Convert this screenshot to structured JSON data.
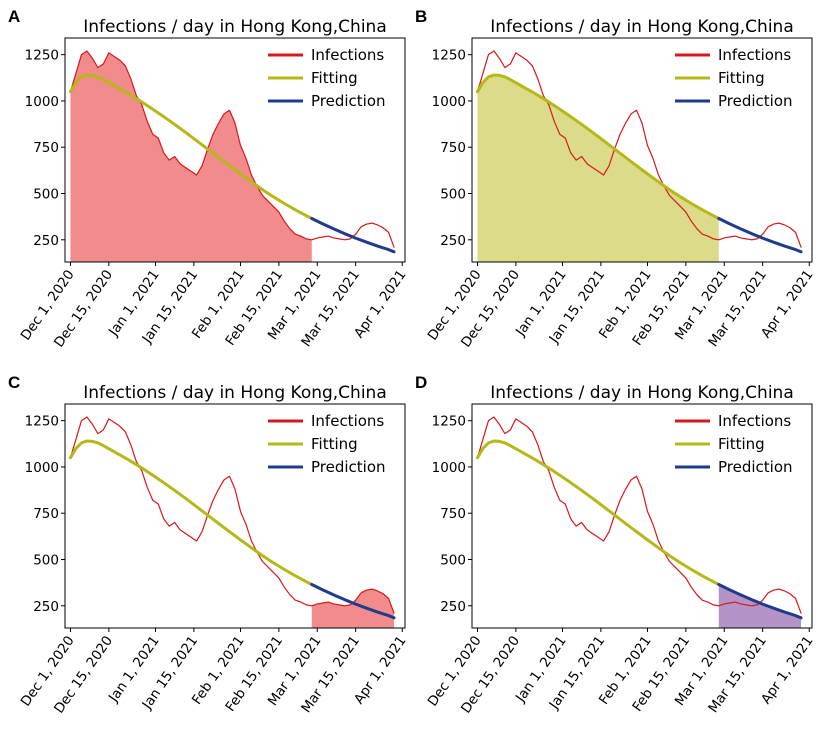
{
  "figure": {
    "title": "Infections / day in Hong Kong,China",
    "panel_labels": [
      "A",
      "B",
      "C",
      "D"
    ],
    "legend": [
      {
        "key": "infections",
        "label": "Infections",
        "color": "#d7191c"
      },
      {
        "key": "fitting",
        "label": "Fitting",
        "color": "#b5b816"
      },
      {
        "key": "prediction",
        "label": "Prediction",
        "color": "#1f3b8c"
      }
    ],
    "panels": [
      {
        "label": "A",
        "shade": "infections",
        "shade_range": [
          0,
          88
        ],
        "shade_color": "#f28b8b"
      },
      {
        "label": "B",
        "shade": "fitting",
        "shade_range": [
          0,
          88
        ],
        "shade_color": "#dbdb8a"
      },
      {
        "label": "C",
        "shade": "infections",
        "shade_range": [
          88,
          118
        ],
        "shade_color": "#f28b8b"
      },
      {
        "label": "D",
        "shade": "prediction",
        "shade_range": [
          88,
          118
        ],
        "shade_color": "#b393c8"
      }
    ]
  },
  "chart_data": {
    "type": "line",
    "title": "Infections / day in Hong Kong,China",
    "x_unit": "days since Dec 1, 2020",
    "xlim": [
      -2,
      122
    ],
    "ylim": [
      130,
      1340
    ],
    "y_ticks": [
      250,
      500,
      750,
      1000,
      1250
    ],
    "y_tick_labels": [
      "250",
      "500",
      "750",
      "1000",
      "1250"
    ],
    "x_ticks": [
      0,
      14,
      31,
      45,
      62,
      76,
      90,
      104,
      121
    ],
    "x_tick_labels": [
      "Dec 1, 2020",
      "Dec 15, 2020",
      "Jan 1, 2021",
      "Jan 15, 2021",
      "Feb 1, 2021",
      "Feb 15, 2021",
      "Mar 1, 2021",
      "Mar 15, 2021",
      "Apr 1, 2021"
    ],
    "fit_end_day": 88,
    "series": [
      {
        "name": "Infections",
        "x": [
          0,
          2,
          4,
          6,
          8,
          10,
          12,
          14,
          16,
          18,
          20,
          22,
          24,
          26,
          28,
          30,
          32,
          34,
          36,
          38,
          40,
          42,
          44,
          46,
          48,
          50,
          52,
          54,
          56,
          58,
          60,
          62,
          64,
          66,
          68,
          70,
          72,
          74,
          76,
          78,
          80,
          82,
          84,
          86,
          88,
          90,
          92,
          94,
          96,
          98,
          100,
          102,
          104,
          106,
          108,
          110,
          112,
          114,
          116,
          118
        ],
        "y": [
          1050,
          1150,
          1250,
          1270,
          1230,
          1180,
          1200,
          1260,
          1240,
          1220,
          1190,
          1120,
          1030,
          980,
          890,
          820,
          800,
          720,
          680,
          700,
          660,
          640,
          620,
          600,
          650,
          740,
          820,
          880,
          930,
          950,
          880,
          760,
          690,
          600,
          540,
          490,
          460,
          430,
          400,
          350,
          310,
          280,
          270,
          255,
          250,
          260,
          265,
          270,
          260,
          255,
          250,
          255,
          280,
          320,
          335,
          340,
          330,
          315,
          290,
          210
        ]
      },
      {
        "name": "Fitting",
        "x": [
          0,
          2,
          4,
          6,
          8,
          10,
          12,
          15,
          18,
          21,
          24,
          27,
          30,
          34,
          38,
          42,
          46,
          50,
          54,
          58,
          62,
          66,
          70,
          74,
          78,
          82,
          86,
          88
        ],
        "y": [
          1050,
          1100,
          1130,
          1140,
          1138,
          1130,
          1115,
          1090,
          1065,
          1040,
          1013,
          985,
          955,
          915,
          873,
          830,
          785,
          740,
          695,
          650,
          606,
          563,
          521,
          482,
          446,
          412,
          380,
          365
        ]
      },
      {
        "name": "Prediction",
        "x": [
          88,
          92,
          96,
          100,
          104,
          108,
          112,
          116,
          118
        ],
        "y": [
          365,
          336,
          309,
          283,
          259,
          237,
          216,
          197,
          185
        ]
      }
    ]
  }
}
